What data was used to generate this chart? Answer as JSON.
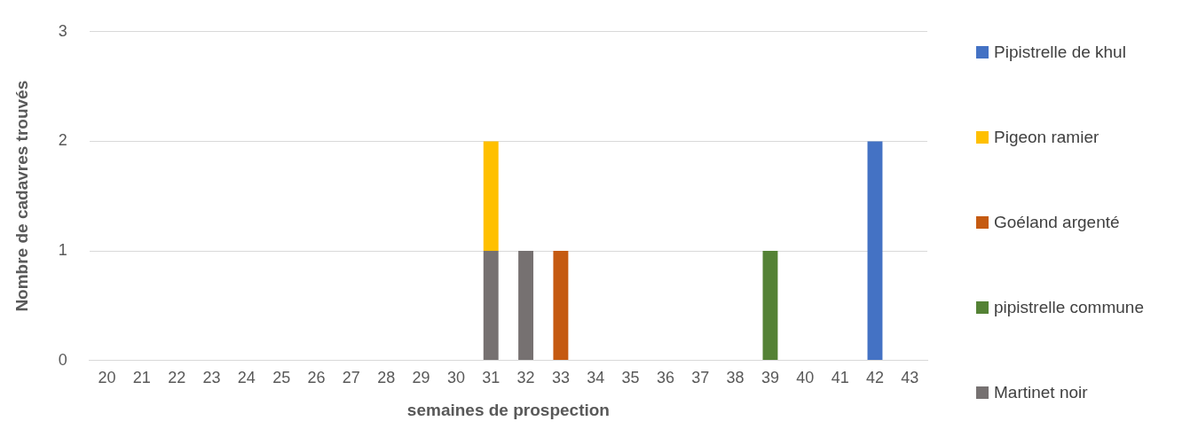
{
  "chart_data": {
    "type": "bar",
    "stacked": true,
    "xlabel": "semaines de prospection",
    "ylabel": "Nombre de cadavres trouvés",
    "categories": [
      "20",
      "21",
      "22",
      "23",
      "24",
      "25",
      "26",
      "27",
      "28",
      "29",
      "30",
      "31",
      "32",
      "33",
      "34",
      "35",
      "36",
      "37",
      "38",
      "39",
      "40",
      "41",
      "42",
      "43"
    ],
    "series": [
      {
        "name": "Martinet noir",
        "color": "#767171",
        "values": [
          0,
          0,
          0,
          0,
          0,
          0,
          0,
          0,
          0,
          0,
          0,
          1,
          1,
          0,
          0,
          0,
          0,
          0,
          0,
          0,
          0,
          0,
          0,
          0
        ]
      },
      {
        "name": "pipistrelle commune",
        "color": "#548235",
        "values": [
          0,
          0,
          0,
          0,
          0,
          0,
          0,
          0,
          0,
          0,
          0,
          0,
          0,
          0,
          0,
          0,
          0,
          0,
          0,
          1,
          0,
          0,
          0,
          0
        ]
      },
      {
        "name": "Goéland argenté",
        "color": "#c55a11",
        "values": [
          0,
          0,
          0,
          0,
          0,
          0,
          0,
          0,
          0,
          0,
          0,
          0,
          0,
          1,
          0,
          0,
          0,
          0,
          0,
          0,
          0,
          0,
          0,
          0
        ]
      },
      {
        "name": "Pigeon ramier",
        "color": "#ffc000",
        "values": [
          0,
          0,
          0,
          0,
          0,
          0,
          0,
          0,
          0,
          0,
          0,
          1,
          0,
          0,
          0,
          0,
          0,
          0,
          0,
          0,
          0,
          0,
          0,
          0
        ]
      },
      {
        "name": "Pipistrelle de khul",
        "color": "#4472c4",
        "values": [
          0,
          0,
          0,
          0,
          0,
          0,
          0,
          0,
          0,
          0,
          0,
          0,
          0,
          0,
          0,
          0,
          0,
          0,
          0,
          0,
          0,
          0,
          2,
          0
        ]
      }
    ],
    "ylim": [
      0,
      3
    ],
    "yticks": [
      0,
      1,
      2,
      3
    ],
    "grid": "y",
    "legend": "right"
  }
}
